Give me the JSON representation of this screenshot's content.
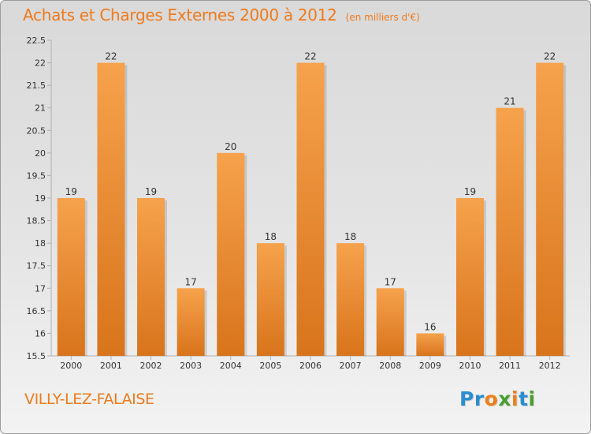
{
  "title": "Achats et Charges Externes 2000 à 2012",
  "unit_label": "(en milliers d'€)",
  "commune": "VILLY-LEZ-FALAISE",
  "logo": {
    "text": "Proxiti",
    "letters": [
      {
        "ch": "P",
        "color": "#2a8dd0"
      },
      {
        "ch": "r",
        "color": "#2a8dd0"
      },
      {
        "ch": "o",
        "color": "#ee7f1a"
      },
      {
        "ch": "x",
        "color": "#4a9e2e"
      },
      {
        "ch": "i",
        "color": "#ee7f1a"
      },
      {
        "ch": "t",
        "color": "#2a8dd0"
      },
      {
        "ch": "i",
        "color": "#4a9e2e"
      }
    ]
  },
  "colors": {
    "bar_light": "#f6a24c",
    "bar_dark": "#d8741c",
    "accent": "#ef7a1c"
  },
  "chart_data": {
    "type": "bar",
    "title": "Achats et Charges Externes 2000 à 2012",
    "subtitle": "(en milliers d'€)",
    "categories": [
      "2000",
      "2001",
      "2002",
      "2003",
      "2004",
      "2005",
      "2006",
      "2007",
      "2008",
      "2009",
      "2010",
      "2011",
      "2012"
    ],
    "values": [
      19,
      22,
      19,
      17,
      20,
      18,
      22,
      18,
      17,
      16,
      19,
      21,
      22
    ],
    "data_labels": [
      "19",
      "22",
      "19",
      "17",
      "20",
      "18",
      "22",
      "18",
      "17",
      "16",
      "19",
      "21",
      "22"
    ],
    "ylim": [
      15.5,
      22.5
    ],
    "yticks": [
      "15.5",
      "16",
      "16.5",
      "17",
      "17.5",
      "18",
      "18.5",
      "19",
      "19.5",
      "20",
      "20.5",
      "21",
      "21.5",
      "22",
      "22.5"
    ],
    "grid": false,
    "legend": "none"
  }
}
